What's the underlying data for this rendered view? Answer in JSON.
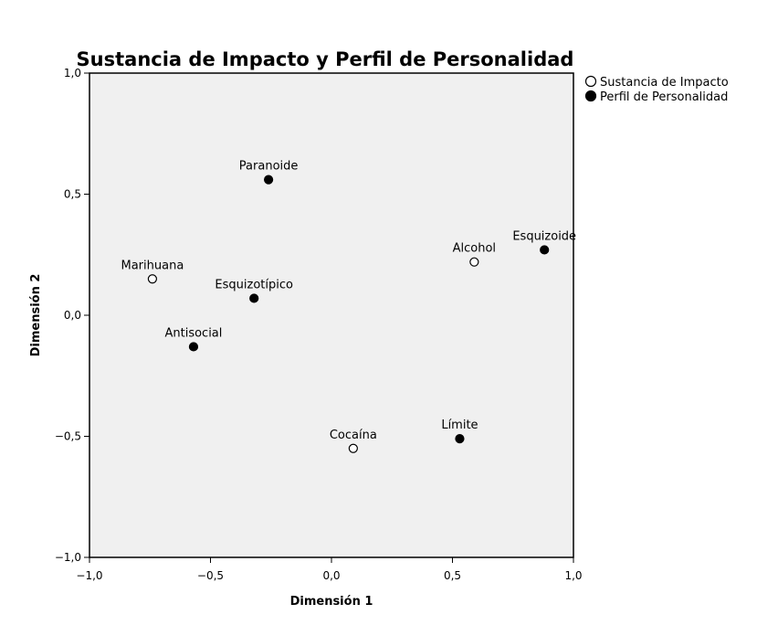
{
  "chart_data": {
    "type": "scatter",
    "title": "Sustancia de Impacto y Perfil de Personalidad",
    "xlabel": "Dimensión 1",
    "ylabel": "Dimensión 2",
    "xlim": [
      -1.0,
      1.0
    ],
    "ylim": [
      -1.0,
      1.0
    ],
    "x_ticks": [
      -1.0,
      -0.5,
      0.0,
      0.5,
      1.0
    ],
    "y_ticks": [
      -1.0,
      -0.5,
      0.0,
      0.5,
      1.0
    ],
    "x_tick_labels": [
      "−1,0",
      "−0,5",
      "0,0",
      "0,5",
      "1,0"
    ],
    "y_tick_labels": [
      "−1,0",
      "−0,5",
      "0,0",
      "0,5",
      "1,0"
    ],
    "grid": false,
    "legend_position": "top-right-outside",
    "plot_background": "#f0f0f0",
    "series": [
      {
        "name": "Sustancia de Impacto",
        "marker": "open-circle",
        "color": "#000000",
        "points": [
          {
            "label": "Marihuana",
            "x": -0.74,
            "y": 0.15
          },
          {
            "label": "Alcohol",
            "x": 0.59,
            "y": 0.22
          },
          {
            "label": "Cocaína",
            "x": 0.09,
            "y": -0.55
          }
        ]
      },
      {
        "name": "Perfil de Personalidad",
        "marker": "filled-circle",
        "color": "#000000",
        "points": [
          {
            "label": "Paranoide",
            "x": -0.26,
            "y": 0.56
          },
          {
            "label": "Esquizoide",
            "x": 0.88,
            "y": 0.27
          },
          {
            "label": "Esquizotípico",
            "x": -0.32,
            "y": 0.07
          },
          {
            "label": "Antisocial",
            "x": -0.57,
            "y": -0.13
          },
          {
            "label": "Límite",
            "x": 0.53,
            "y": -0.51
          }
        ]
      }
    ]
  }
}
